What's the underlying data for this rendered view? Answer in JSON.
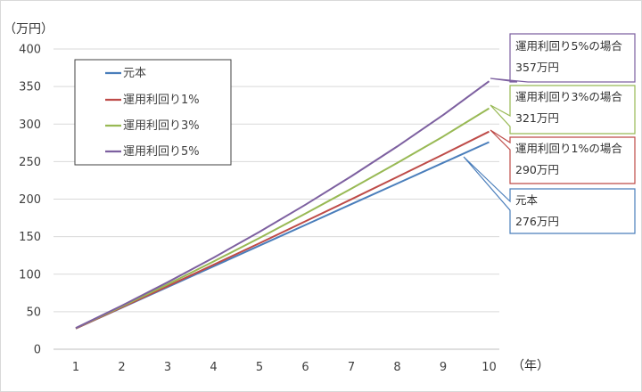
{
  "chart_data": {
    "type": "line",
    "y_unit_label": "（万円）",
    "x_unit_label": "（年）",
    "x": [
      1,
      2,
      3,
      4,
      5,
      6,
      7,
      8,
      9,
      10
    ],
    "ylim": [
      0,
      400
    ],
    "y_ticks": [
      "0",
      "50",
      "100",
      "150",
      "200",
      "250",
      "300",
      "350",
      "400"
    ],
    "x_ticks": [
      "1",
      "2",
      "3",
      "4",
      "5",
      "6",
      "7",
      "8",
      "9",
      "10"
    ],
    "grid": "horizontal",
    "legend_position": "top-left",
    "series": [
      {
        "name": "元本",
        "color": "#4a7ebb",
        "values": [
          27.6,
          55.2,
          82.8,
          110.4,
          138,
          165.6,
          193.2,
          220.8,
          248.4,
          276
        ]
      },
      {
        "name": "運用利回り1%",
        "color": "#be4b48",
        "values": [
          27.7,
          55.7,
          84.0,
          112.5,
          141.3,
          170.4,
          199.8,
          229.5,
          259.5,
          290
        ]
      },
      {
        "name": "運用利回り3%",
        "color": "#98b954",
        "values": [
          28.0,
          56.8,
          86.4,
          116.9,
          148.3,
          180.6,
          213.9,
          248.2,
          283.5,
          321
        ]
      },
      {
        "name": "運用利回り5%",
        "color": "#7d60a0",
        "values": [
          28.3,
          58.0,
          89.2,
          122.0,
          156.4,
          192.5,
          230.4,
          270.2,
          312.1,
          357
        ]
      }
    ],
    "callouts": [
      {
        "line1": "運用利回り5%の場合",
        "line2": "357万円",
        "color": "#7d60a0"
      },
      {
        "line1": "運用利回り3%の場合",
        "line2": "321万円",
        "color": "#98b954"
      },
      {
        "line1": "運用利回り1%の場合",
        "line2": "290万円",
        "color": "#be4b48"
      },
      {
        "line1": "元本",
        "line2": "276万円",
        "color": "#4a7ebb"
      }
    ]
  }
}
